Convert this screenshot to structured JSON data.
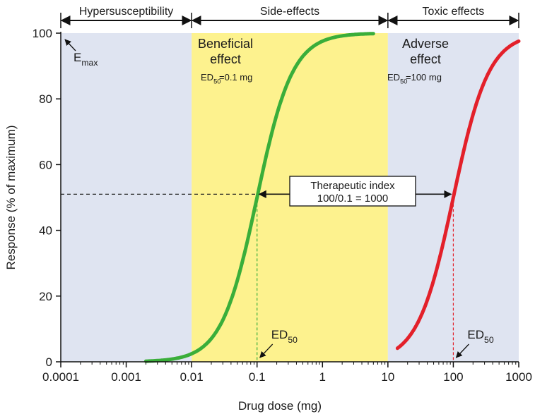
{
  "chart_data": {
    "type": "line",
    "xscale": "log",
    "xlim": [
      0.0001,
      1000
    ],
    "ylim": [
      0,
      100
    ],
    "xlabel": "Drug dose (mg)",
    "ylabel": "Response (% of maximum)",
    "xticks": [
      "0.0001",
      "0.001",
      "0.01",
      "0.1",
      "1",
      "10",
      "100",
      "1000"
    ],
    "xtick_values": [
      0.0001,
      0.001,
      0.01,
      0.1,
      1,
      10,
      100,
      1000
    ],
    "yticks": [
      "0",
      "20",
      "40",
      "60",
      "80",
      "100"
    ],
    "ytick_values": [
      0,
      20,
      40,
      60,
      80,
      100
    ],
    "regions": [
      {
        "label": "Hypersusceptibility",
        "from": 0.0001,
        "to": 0.01,
        "color": "#dfe4f1"
      },
      {
        "label": "Side-effects",
        "from": 0.01,
        "to": 10,
        "color": "#fdf28e"
      },
      {
        "label": "Toxic effects",
        "from": 10,
        "to": 1000,
        "color": "#dfe4f1"
      }
    ],
    "series": [
      {
        "title": "Beneficial",
        "title2": "effect",
        "ed50_label": "ED50 =0.1 mg",
        "ed50": 0.1,
        "color": "#3aae3a",
        "x_start": 0.002,
        "x_end": 6
      },
      {
        "title": "Adverse",
        "title2": "effect",
        "ed50_label": "ED50 =100 mg",
        "ed50": 100,
        "color": "#e3202a",
        "x_start": 14,
        "x_end": 1000
      }
    ],
    "annotations": {
      "emax": "Emax",
      "ed50": "ED50",
      "therapeutic_index_line1": "Therapeutic index",
      "therapeutic_index_line2": "100/0.1 = 1000",
      "dashed_y": 51
    }
  }
}
